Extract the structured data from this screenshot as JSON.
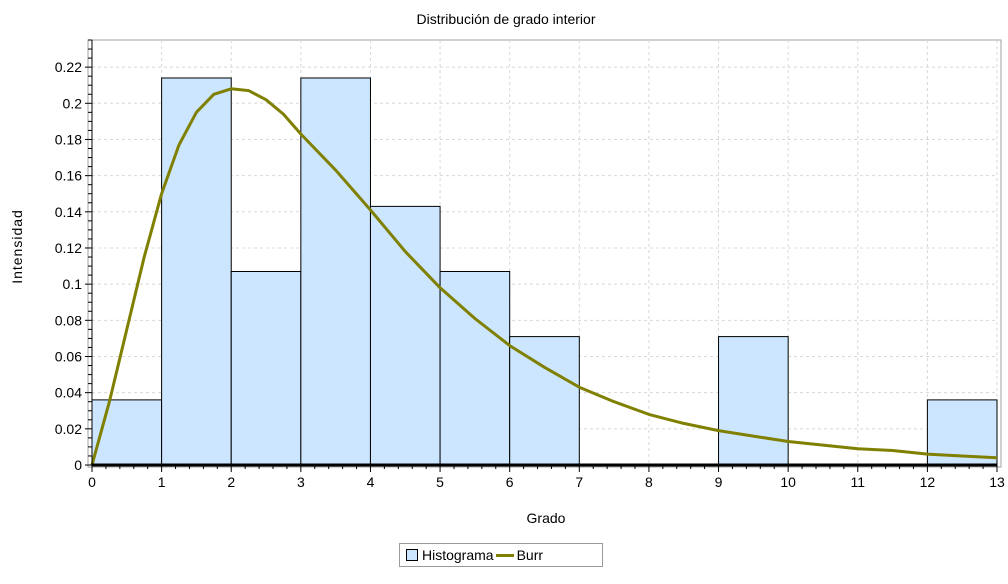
{
  "chart_data": {
    "type": "bar",
    "title": "Distribución de grado interior",
    "xlabel": "Grado",
    "ylabel": "Intensidad",
    "xlim": [
      0,
      13
    ],
    "ylim": [
      0,
      0.235
    ],
    "x_ticks": [
      0,
      1,
      2,
      3,
      4,
      5,
      6,
      7,
      8,
      9,
      10,
      11,
      12,
      13
    ],
    "y_ticks": [
      0,
      0.02,
      0.04,
      0.06,
      0.08,
      0.1,
      0.12,
      0.14,
      0.16,
      0.18,
      0.2,
      0.22
    ],
    "grid": true,
    "legend_position": "bottom-center",
    "series": [
      {
        "name": "Histograma",
        "type": "histogram",
        "color": "#cce6ff",
        "bins": [
          {
            "x0": 0,
            "x1": 1,
            "value": 0.036
          },
          {
            "x0": 1,
            "x1": 2,
            "value": 0.214
          },
          {
            "x0": 2,
            "x1": 3,
            "value": 0.107
          },
          {
            "x0": 3,
            "x1": 4,
            "value": 0.214
          },
          {
            "x0": 4,
            "x1": 5,
            "value": 0.143
          },
          {
            "x0": 5,
            "x1": 6,
            "value": 0.107
          },
          {
            "x0": 6,
            "x1": 7,
            "value": 0.071
          },
          {
            "x0": 7,
            "x1": 8,
            "value": 0.0
          },
          {
            "x0": 8,
            "x1": 9,
            "value": 0.0
          },
          {
            "x0": 9,
            "x1": 10,
            "value": 0.071
          },
          {
            "x0": 10,
            "x1": 11,
            "value": 0.0
          },
          {
            "x0": 11,
            "x1": 12,
            "value": 0.0
          },
          {
            "x0": 12,
            "x1": 13,
            "value": 0.036
          }
        ]
      },
      {
        "name": "Burr",
        "type": "line",
        "color": "#808000",
        "x": [
          0,
          0.25,
          0.5,
          0.75,
          1,
          1.25,
          1.5,
          1.75,
          2,
          2.25,
          2.5,
          2.75,
          3,
          3.5,
          4,
          4.5,
          5,
          5.5,
          6,
          6.5,
          7,
          7.5,
          8,
          8.5,
          9,
          9.5,
          10,
          10.5,
          11,
          11.5,
          12,
          12.5,
          13
        ],
        "y": [
          0.0,
          0.035,
          0.075,
          0.115,
          0.15,
          0.177,
          0.195,
          0.205,
          0.208,
          0.207,
          0.202,
          0.194,
          0.183,
          0.163,
          0.141,
          0.118,
          0.098,
          0.081,
          0.066,
          0.054,
          0.043,
          0.035,
          0.028,
          0.023,
          0.019,
          0.016,
          0.013,
          0.011,
          0.009,
          0.008,
          0.006,
          0.005,
          0.004
        ]
      }
    ]
  }
}
